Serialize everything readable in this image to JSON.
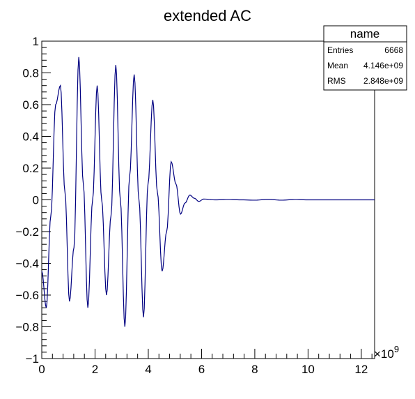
{
  "chart_data": {
    "type": "line",
    "title": "extended AC",
    "xlabel": "",
    "ylabel": "",
    "xlim": [
      0,
      12.5
    ],
    "ylim": [
      -1,
      1
    ],
    "x_exponent": "×10",
    "x_exponent_power": "9",
    "x_ticks": [
      0,
      2,
      4,
      6,
      8,
      10,
      12
    ],
    "x_tick_labels": [
      "0",
      "2",
      "4",
      "6",
      "8",
      "10",
      "12"
    ],
    "y_ticks": [
      -1,
      -0.8,
      -0.6,
      -0.4,
      -0.2,
      0,
      0.2,
      0.4,
      0.6,
      0.8,
      1
    ],
    "y_tick_labels": [
      "−1",
      "−0.8",
      "−0.6",
      "−0.4",
      "−0.2",
      "0",
      "0.2",
      "0.4",
      "0.6",
      "0.8",
      "1"
    ],
    "grid": false,
    "line_color": "#000080",
    "series": [
      {
        "x": [
          0,
          0.17,
          0.34,
          0.52,
          0.7,
          0.87,
          1.04,
          1.21,
          1.39,
          1.56,
          1.73,
          1.91,
          2.08,
          2.25,
          2.43,
          2.6,
          2.78,
          2.95,
          3.12,
          3.3,
          3.47,
          3.65,
          3.82,
          3.99,
          4.17,
          4.34,
          4.52,
          4.69,
          4.86,
          5.04,
          5.21,
          5.38,
          5.56,
          5.73,
          5.9,
          6.08,
          6.5,
          7.0,
          7.5,
          8.0,
          8.5,
          9.0,
          9.5,
          10.0,
          10.5,
          11.0,
          11.5,
          12.0,
          12.5
        ],
        "y": [
          -0.45,
          -0.68,
          -0.1,
          0.6,
          0.72,
          0.05,
          -0.64,
          -0.3,
          0.9,
          0.1,
          -0.68,
          0.0,
          0.72,
          0.0,
          -0.6,
          -0.1,
          0.85,
          0.0,
          -0.8,
          0.15,
          0.79,
          0.0,
          -0.74,
          0.1,
          0.63,
          0.05,
          -0.45,
          -0.2,
          0.24,
          0.1,
          -0.09,
          -0.02,
          0.03,
          0.01,
          -0.01,
          0.005,
          0.0,
          0.002,
          0.0,
          -0.002,
          0.003,
          -0.002,
          0.002,
          0.0,
          0.0,
          0.0,
          0.0,
          0.0,
          0.0
        ]
      }
    ],
    "stats": {
      "name": "name",
      "rows": [
        {
          "label": "Entries",
          "value": "6668"
        },
        {
          "label": "Mean",
          "value": "4.146e+09"
        },
        {
          "label": "RMS",
          "value": "2.848e+09"
        }
      ]
    }
  }
}
